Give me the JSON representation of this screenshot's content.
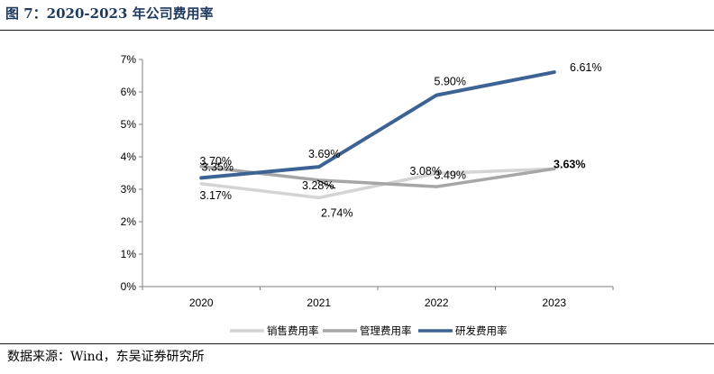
{
  "header": {
    "title": "图 7：2020-2023 年公司费用率"
  },
  "footer": {
    "source": "数据来源：Wind，东吴证券研究所"
  },
  "chart_data": {
    "type": "line",
    "title": "",
    "xlabel": "",
    "ylabel": "",
    "categories": [
      "2020",
      "2021",
      "2022",
      "2023"
    ],
    "ylim": [
      0,
      7
    ],
    "yticks": [
      "0%",
      "1%",
      "2%",
      "3%",
      "4%",
      "5%",
      "6%",
      "7%"
    ],
    "grid": false,
    "legend_position": "bottom",
    "series": [
      {
        "name": "销售费用率",
        "color": "#d4d4d4",
        "values": [
          3.17,
          2.74,
          3.49,
          3.63
        ],
        "labels": [
          "3.17%",
          "2.74%",
          "3.49%",
          ""
        ]
      },
      {
        "name": "管理费用率",
        "color": "#a6a6a6",
        "values": [
          3.7,
          3.28,
          3.08,
          3.63
        ],
        "labels": [
          "3.70%",
          "3.28%",
          "3.08%",
          "3.63%"
        ]
      },
      {
        "name": "研发费用率",
        "color": "#3d6394",
        "values": [
          3.35,
          3.69,
          5.9,
          6.61
        ],
        "labels": [
          "3.35%",
          "3.69%",
          "5.90%",
          "6.61%"
        ]
      }
    ]
  }
}
